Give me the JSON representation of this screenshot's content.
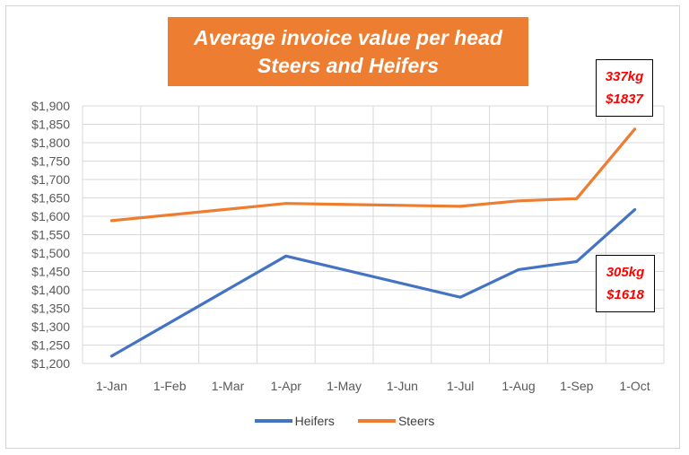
{
  "chart_data": {
    "type": "line",
    "title": [
      "Average invoice value per head",
      "Steers and Heifers"
    ],
    "categories": [
      "1-Jan",
      "1-Feb",
      "1-Mar",
      "1-Apr",
      "1-May",
      "1-Jun",
      "1-Jul",
      "1-Aug",
      "1-Sep",
      "1-Oct"
    ],
    "xlabel": "",
    "ylabel": "",
    "ylim": [
      1200,
      1900
    ],
    "yticks": [
      1200,
      1250,
      1300,
      1350,
      1400,
      1450,
      1500,
      1550,
      1600,
      1650,
      1700,
      1750,
      1800,
      1850,
      1900
    ],
    "ytick_labels": [
      "$1,200",
      "$1,250",
      "$1,300",
      "$1,350",
      "$1,400",
      "$1,450",
      "$1,500",
      "$1,550",
      "$1,600",
      "$1,650",
      "$1,700",
      "$1,750",
      "$1,800",
      "$1,850",
      "$1,900"
    ],
    "grid": true,
    "legend_position": "bottom",
    "series": [
      {
        "name": "Heifers",
        "color": "#4472c4",
        "x": [
          "1-Jan",
          "1-Apr",
          "1-Jul",
          "1-Aug",
          "1-Sep",
          "1-Oct"
        ],
        "values": [
          1220,
          1492,
          1380,
          1455,
          1477,
          1618
        ]
      },
      {
        "name": "Steers",
        "color": "#ed7d31",
        "x": [
          "1-Jan",
          "1-Apr",
          "1-Jul",
          "1-Aug",
          "1-Sep",
          "1-Oct"
        ],
        "values": [
          1588,
          1635,
          1627,
          1642,
          1648,
          1837
        ]
      }
    ],
    "annotations": [
      {
        "id": "steers",
        "lines": [
          "337kg",
          "$1837"
        ]
      },
      {
        "id": "heifers",
        "lines": [
          "305kg",
          "$1618"
        ]
      }
    ]
  }
}
